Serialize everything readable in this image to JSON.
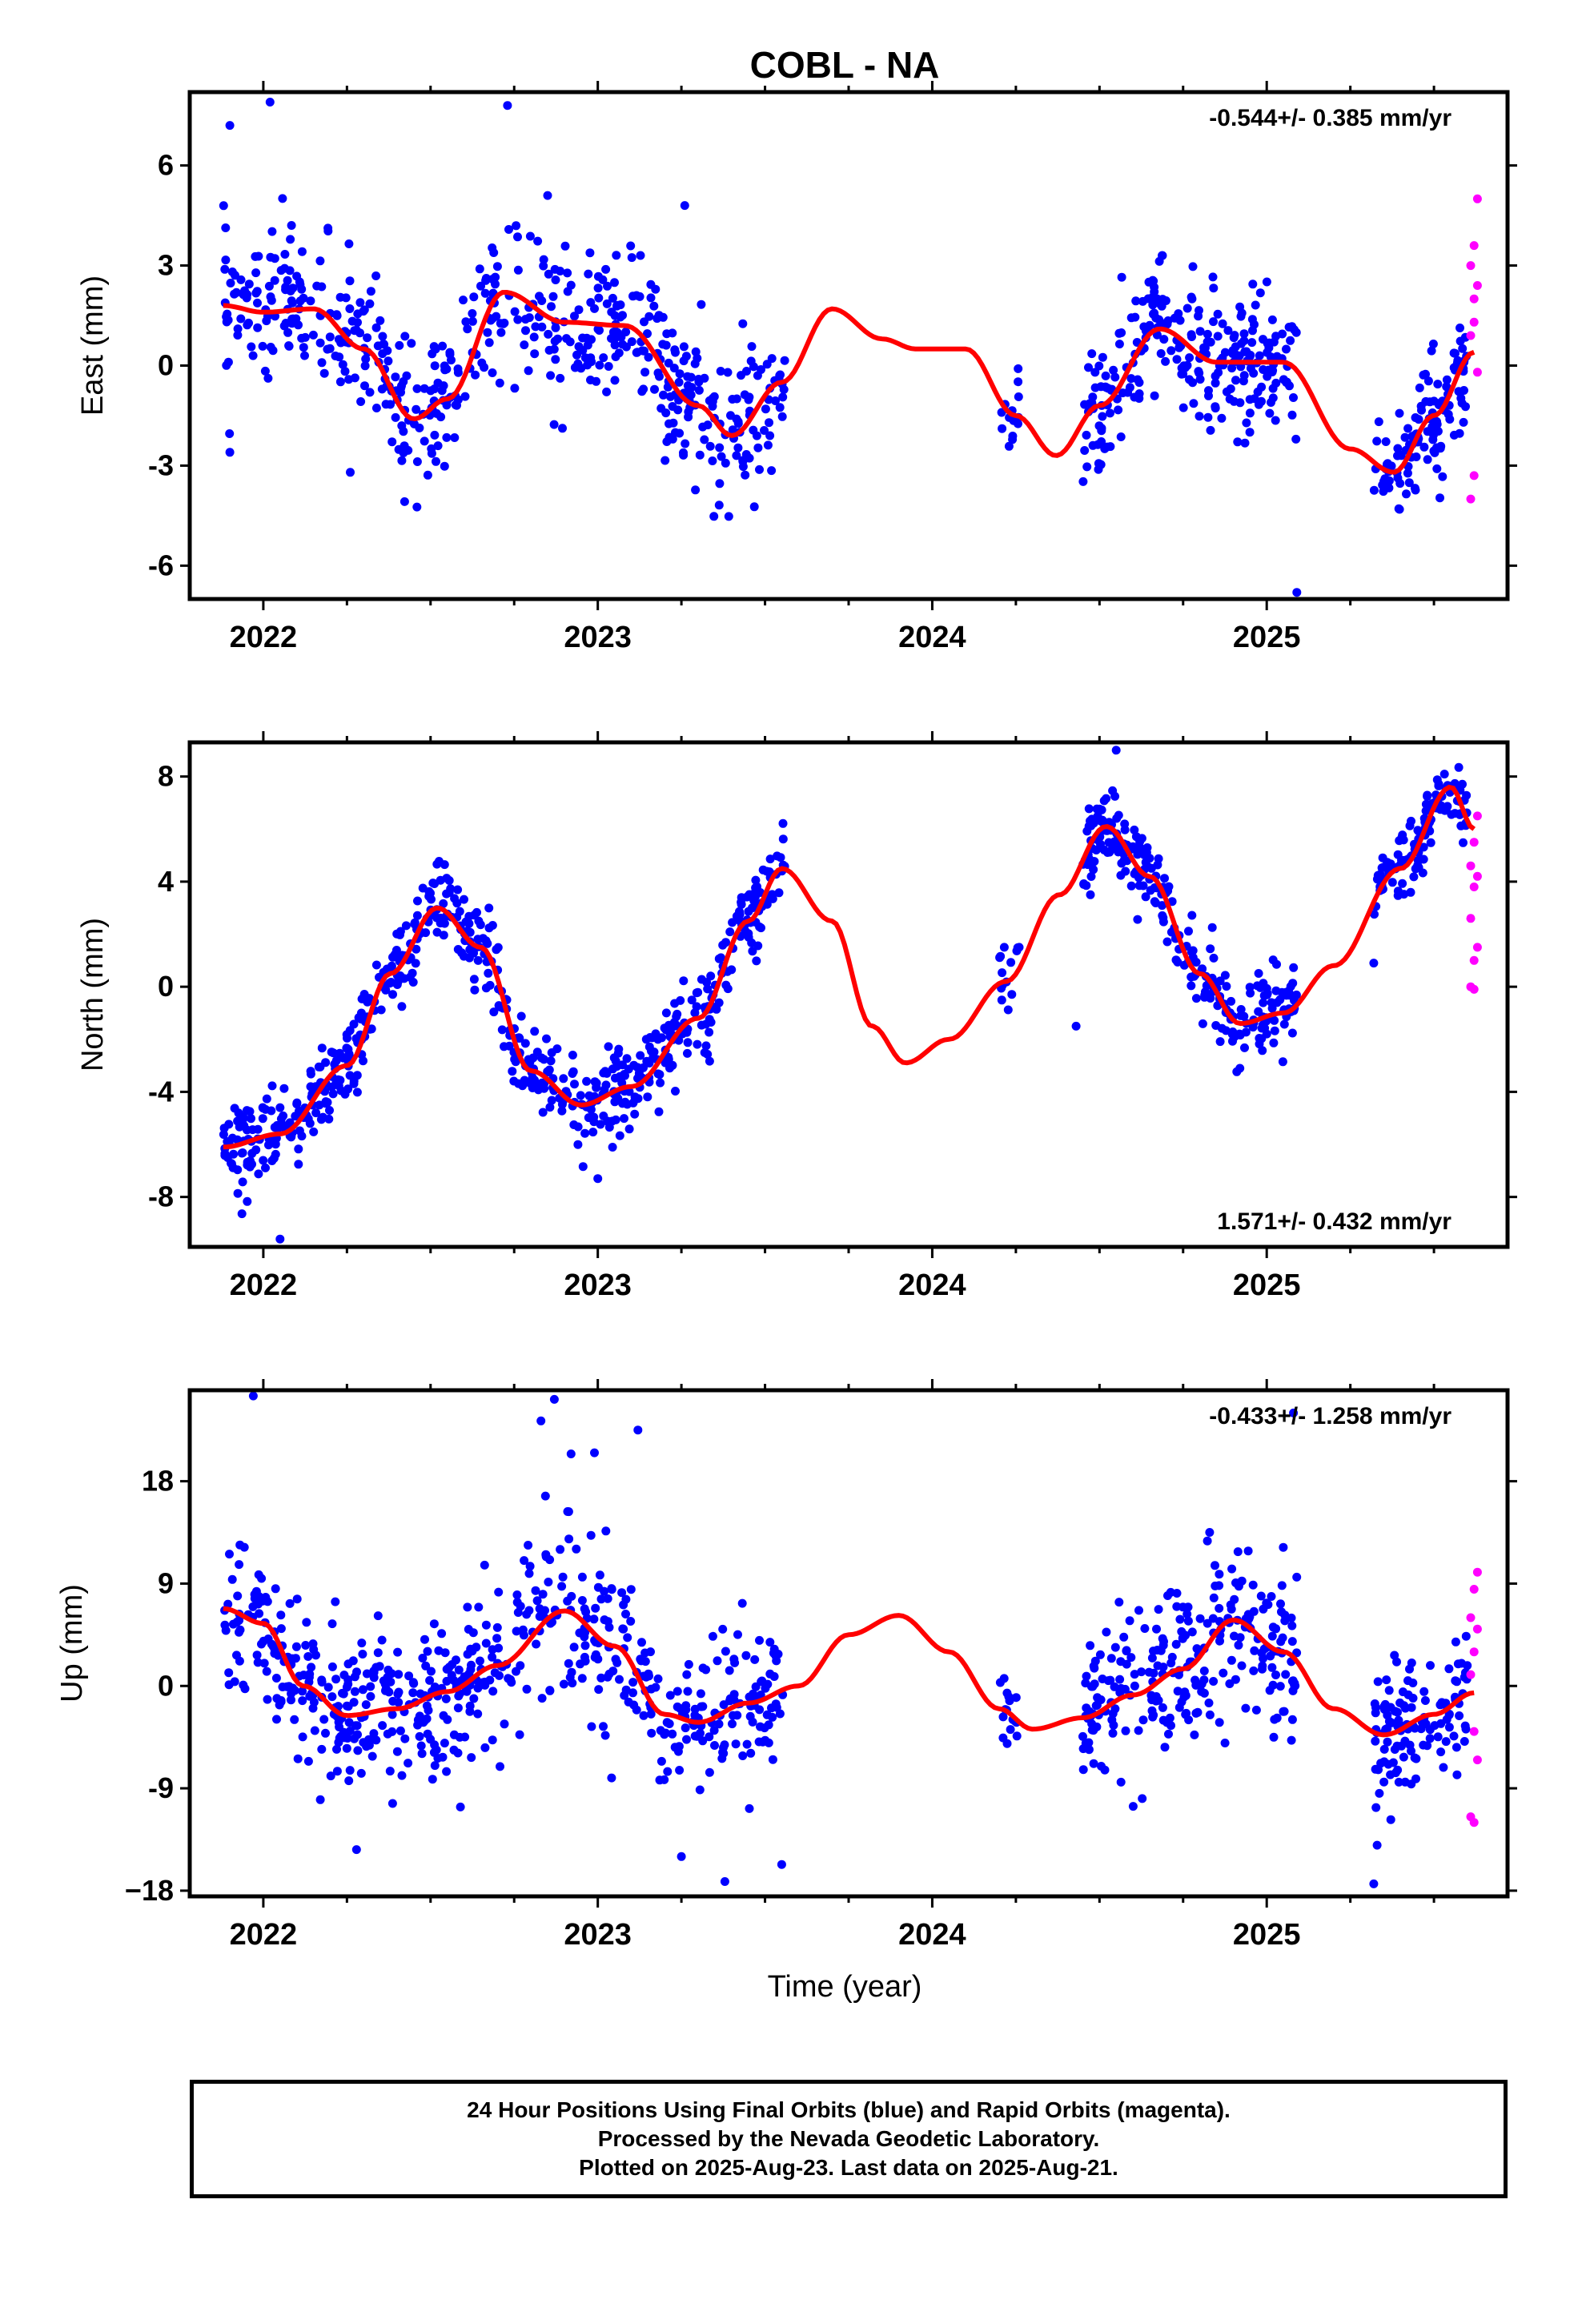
{
  "chart_data": {
    "type": "scatter",
    "title": "COBL - NA",
    "xlabel": "Time (year)",
    "xlim": [
      2021.78,
      2025.72
    ],
    "x_ticks": [
      "2022",
      "2023",
      "2024",
      "2025"
    ],
    "colors": {
      "final": "#0000ff",
      "rapid": "#ff00ff",
      "model": "#ff0000"
    },
    "panels": [
      {
        "ylabel": "East (mm)",
        "ylim": [
          -7,
          8.2
        ],
        "yticks": [
          "6",
          "3",
          "0",
          "-3",
          "-6"
        ],
        "rate": "-0.544+/- 0.385 mm/yr",
        "rate_position": "top-right",
        "model_curve": [
          [
            2021.88,
            1.8
          ],
          [
            2022.0,
            1.6
          ],
          [
            2022.15,
            1.7
          ],
          [
            2022.3,
            0.5
          ],
          [
            2022.45,
            -1.6
          ],
          [
            2022.55,
            -1.0
          ],
          [
            2022.72,
            2.2
          ],
          [
            2022.9,
            1.3
          ],
          [
            2023.08,
            1.2
          ],
          [
            2023.3,
            -1.2
          ],
          [
            2023.4,
            -2.1
          ],
          [
            2023.55,
            -0.5
          ],
          [
            2023.7,
            1.7
          ],
          [
            2023.85,
            0.8
          ],
          [
            2023.95,
            0.5
          ],
          [
            2024.1,
            0.5
          ],
          [
            2024.25,
            -1.5
          ],
          [
            2024.37,
            -2.7
          ],
          [
            2024.5,
            -1.2
          ],
          [
            2024.68,
            1.1
          ],
          [
            2024.85,
            0.1
          ],
          [
            2025.05,
            0.1
          ],
          [
            2025.25,
            -2.5
          ],
          [
            2025.38,
            -3.2
          ],
          [
            2025.5,
            -1.5
          ],
          [
            2025.62,
            0.4
          ]
        ],
        "final_segments": [
          {
            "start": 2021.88,
            "end": 2023.56,
            "pts": 560,
            "sd": 1.1,
            "clip": [
              -4.9,
              5.2
            ]
          },
          {
            "start": 2024.2,
            "end": 2024.26,
            "pts": 14,
            "sd": 1.0,
            "clip": [
              -4.7,
              0.5
            ]
          },
          {
            "start": 2024.45,
            "end": 2025.09,
            "pts": 260,
            "sd": 1.0,
            "clip": [
              -4.7,
              3.3
            ]
          },
          {
            "start": 2025.32,
            "end": 2025.6,
            "pts": 120,
            "sd": 0.9,
            "clip": [
              -6.0,
              2.0
            ]
          }
        ],
        "outliers": [
          [
            2021.9,
            7.2
          ],
          [
            2022.02,
            7.9
          ],
          [
            2022.73,
            7.8
          ],
          [
            2022.85,
            5.1
          ],
          [
            2023.26,
            4.8
          ],
          [
            2025.09,
            -6.8
          ],
          [
            2021.9,
            -2.6
          ],
          [
            2022.26,
            -3.2
          ]
        ],
        "rapid_points": [
          [
            2025.63,
            5.0
          ],
          [
            2025.62,
            3.6
          ],
          [
            2025.61,
            3.0
          ],
          [
            2025.63,
            2.4
          ],
          [
            2025.62,
            1.3
          ],
          [
            2025.61,
            0.9
          ],
          [
            2025.63,
            -0.2
          ],
          [
            2025.62,
            -3.3
          ],
          [
            2025.61,
            -4.0
          ],
          [
            2025.62,
            2.0
          ]
        ]
      },
      {
        "ylabel": "North (mm)",
        "ylim": [
          -9.9,
          9.3
        ],
        "yticks": [
          "8",
          "4",
          "0",
          "-4",
          "-8"
        ],
        "rate": "1.571+/- 0.432 mm/yr",
        "rate_position": "bottom-right",
        "model_curve": [
          [
            2021.88,
            -6.1
          ],
          [
            2022.05,
            -5.6
          ],
          [
            2022.25,
            -3.0
          ],
          [
            2022.38,
            0.5
          ],
          [
            2022.52,
            3.0
          ],
          [
            2022.65,
            1.5
          ],
          [
            2022.8,
            -3.2
          ],
          [
            2022.95,
            -4.5
          ],
          [
            2023.1,
            -3.8
          ],
          [
            2023.3,
            -1.2
          ],
          [
            2023.45,
            2.5
          ],
          [
            2023.55,
            4.5
          ],
          [
            2023.7,
            2.5
          ],
          [
            2023.82,
            -1.5
          ],
          [
            2023.92,
            -2.9
          ],
          [
            2024.05,
            -2.0
          ],
          [
            2024.22,
            0.2
          ],
          [
            2024.38,
            3.5
          ],
          [
            2024.52,
            6.1
          ],
          [
            2024.65,
            4.2
          ],
          [
            2024.8,
            0.5
          ],
          [
            2024.92,
            -1.4
          ],
          [
            2025.05,
            -1.0
          ],
          [
            2025.2,
            0.8
          ],
          [
            2025.4,
            4.5
          ],
          [
            2025.55,
            7.6
          ],
          [
            2025.62,
            6.0
          ]
        ],
        "final_segments": [
          {
            "start": 2021.88,
            "end": 2023.56,
            "pts": 620,
            "sd": 0.8,
            "clip": [
              -9.7,
              6.8
            ]
          },
          {
            "start": 2024.2,
            "end": 2024.26,
            "pts": 14,
            "sd": 0.9,
            "clip": [
              -3.5,
              1.5
            ]
          },
          {
            "start": 2024.45,
            "end": 2025.09,
            "pts": 260,
            "sd": 0.8,
            "clip": [
              -4.2,
              9.0
            ]
          },
          {
            "start": 2025.32,
            "end": 2025.6,
            "pts": 120,
            "sd": 0.7,
            "clip": [
              0.9,
              8.4
            ]
          }
        ],
        "outliers": [
          [
            2022.05,
            -9.6
          ],
          [
            2023.0,
            -7.3
          ],
          [
            2024.43,
            -1.5
          ],
          [
            2024.55,
            9.0
          ],
          [
            2025.32,
            0.9
          ]
        ],
        "rapid_points": [
          [
            2025.62,
            5.5
          ],
          [
            2025.61,
            4.6
          ],
          [
            2025.63,
            4.2
          ],
          [
            2025.62,
            3.8
          ],
          [
            2025.61,
            2.6
          ],
          [
            2025.63,
            1.5
          ],
          [
            2025.62,
            1.0
          ],
          [
            2025.61,
            0.0
          ],
          [
            2025.62,
            -0.1
          ],
          [
            2025.63,
            6.5
          ]
        ]
      },
      {
        "ylabel": "Up (mm)",
        "ylim": [
          -18.5,
          26
        ],
        "yticks": [
          "18",
          "9",
          "0",
          "-9",
          "−18"
        ],
        "rate": "-0.433+/- 1.258 mm/yr",
        "rate_position": "top-right",
        "model_curve": [
          [
            2021.88,
            6.8
          ],
          [
            2022.0,
            5.5
          ],
          [
            2022.12,
            0.0
          ],
          [
            2022.25,
            -2.6
          ],
          [
            2022.4,
            -2.0
          ],
          [
            2022.55,
            -0.5
          ],
          [
            2022.7,
            1.8
          ],
          [
            2022.9,
            6.6
          ],
          [
            2023.05,
            3.5
          ],
          [
            2023.2,
            -2.5
          ],
          [
            2023.3,
            -3.2
          ],
          [
            2023.45,
            -1.5
          ],
          [
            2023.6,
            0.0
          ],
          [
            2023.75,
            4.5
          ],
          [
            2023.9,
            6.2
          ],
          [
            2024.05,
            3.0
          ],
          [
            2024.2,
            -2.0
          ],
          [
            2024.3,
            -3.8
          ],
          [
            2024.45,
            -2.8
          ],
          [
            2024.6,
            -0.8
          ],
          [
            2024.75,
            1.5
          ],
          [
            2024.9,
            5.8
          ],
          [
            2025.05,
            3.0
          ],
          [
            2025.2,
            -2.0
          ],
          [
            2025.35,
            -4.3
          ],
          [
            2025.5,
            -2.5
          ],
          [
            2025.62,
            -0.6
          ]
        ],
        "final_segments": [
          {
            "start": 2021.88,
            "end": 2023.56,
            "pts": 600,
            "sd": 3.5,
            "clip": [
              -14.5,
              20.0
            ]
          },
          {
            "start": 2024.2,
            "end": 2024.26,
            "pts": 16,
            "sd": 3.0,
            "clip": [
              -12.5,
              2.5
            ]
          },
          {
            "start": 2024.45,
            "end": 2025.09,
            "pts": 260,
            "sd": 3.5,
            "clip": [
              -12.5,
              13.5
            ]
          },
          {
            "start": 2025.32,
            "end": 2025.6,
            "pts": 120,
            "sd": 3.0,
            "clip": [
              -12.0,
              7.5
            ]
          }
        ],
        "outliers": [
          [
            2021.97,
            25.5
          ],
          [
            2022.83,
            23.3
          ],
          [
            2022.87,
            25.2
          ],
          [
            2023.12,
            22.5
          ],
          [
            2023.25,
            -15.0
          ],
          [
            2023.38,
            -17.2
          ],
          [
            2023.55,
            -15.7
          ],
          [
            2025.32,
            -17.4
          ],
          [
            2025.33,
            -14.0
          ],
          [
            2025.08,
            24.0
          ],
          [
            2022.92,
            20.4
          ],
          [
            2022.99,
            20.5
          ]
        ],
        "rapid_points": [
          [
            2025.63,
            10.0
          ],
          [
            2025.62,
            8.5
          ],
          [
            2025.61,
            6.0
          ],
          [
            2025.63,
            5.0
          ],
          [
            2025.62,
            3.0
          ],
          [
            2025.61,
            1.0
          ],
          [
            2025.62,
            -4.0
          ],
          [
            2025.63,
            -6.5
          ],
          [
            2025.61,
            -11.5
          ],
          [
            2025.62,
            -12.0
          ]
        ]
      }
    ]
  },
  "footer": {
    "line1": "24 Hour Positions Using Final Orbits (blue) and Rapid Orbits (magenta).",
    "line2": "Processed by the Nevada Geodetic Laboratory.",
    "line3": "Plotted on 2025-Aug-23. Last data on 2025-Aug-21."
  }
}
